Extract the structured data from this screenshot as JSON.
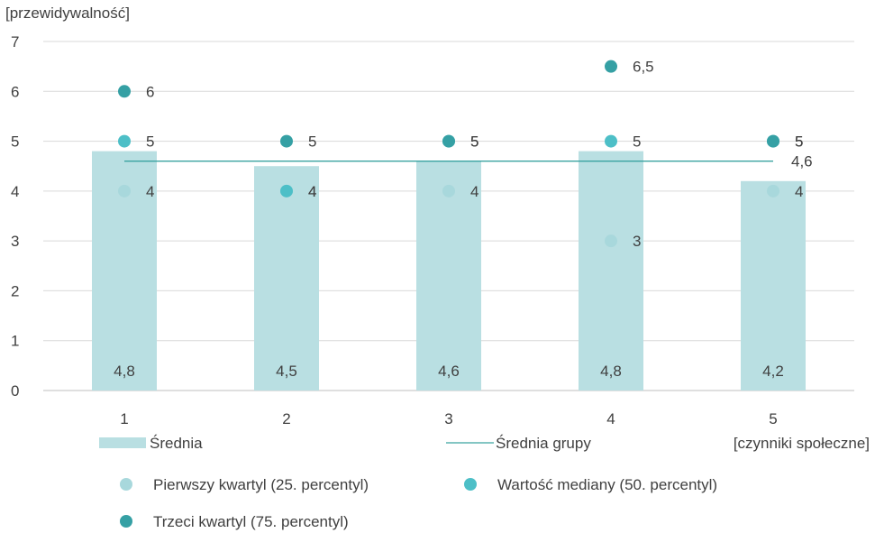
{
  "chart_data": {
    "type": "bar",
    "ylabel": "[przewidywalność]",
    "xlabel": "[czynniki społeczne]",
    "categories": [
      "1",
      "2",
      "3",
      "4",
      "5"
    ],
    "ylim": [
      0,
      7
    ],
    "yticks": [
      "0",
      "1",
      "2",
      "3",
      "4",
      "5",
      "6",
      "7"
    ],
    "grid": true,
    "legend_position": "bottom",
    "colors": {
      "bar": "#b9dfe2",
      "group_line": "#3aa3a0",
      "q1": "#a8d8dc",
      "median": "#4dbfc7",
      "q3": "#35a0a4",
      "grid": "#d9d9d9",
      "axis": "#bfbfbf"
    },
    "series": [
      {
        "name": "Średnia",
        "kind": "bar",
        "values": [
          4.8,
          4.5,
          4.6,
          4.8,
          4.2
        ],
        "labels": [
          "4,8",
          "4,5",
          "4,6",
          "4,8",
          "4,2"
        ]
      },
      {
        "name": "Średnia grupy",
        "kind": "line",
        "value": 4.6,
        "label": "4,6"
      },
      {
        "name": "Pierwszy kwartyl (25. percentyl)",
        "kind": "point",
        "values": [
          4,
          4,
          4,
          3,
          4
        ],
        "labels": [
          "4",
          "4",
          "4",
          "3",
          "4"
        ]
      },
      {
        "name": "Wartość mediany (50. percentyl)",
        "kind": "point",
        "values": [
          5,
          4,
          5,
          5,
          5
        ],
        "labels": [
          "5",
          "4",
          "5",
          "5",
          "5"
        ]
      },
      {
        "name": "Trzeci kwartyl (75. percentyl)",
        "kind": "point",
        "values": [
          6,
          5,
          5,
          6.5,
          5
        ],
        "labels": [
          "6",
          "5",
          "5",
          "6,5",
          "5"
        ]
      }
    ]
  }
}
